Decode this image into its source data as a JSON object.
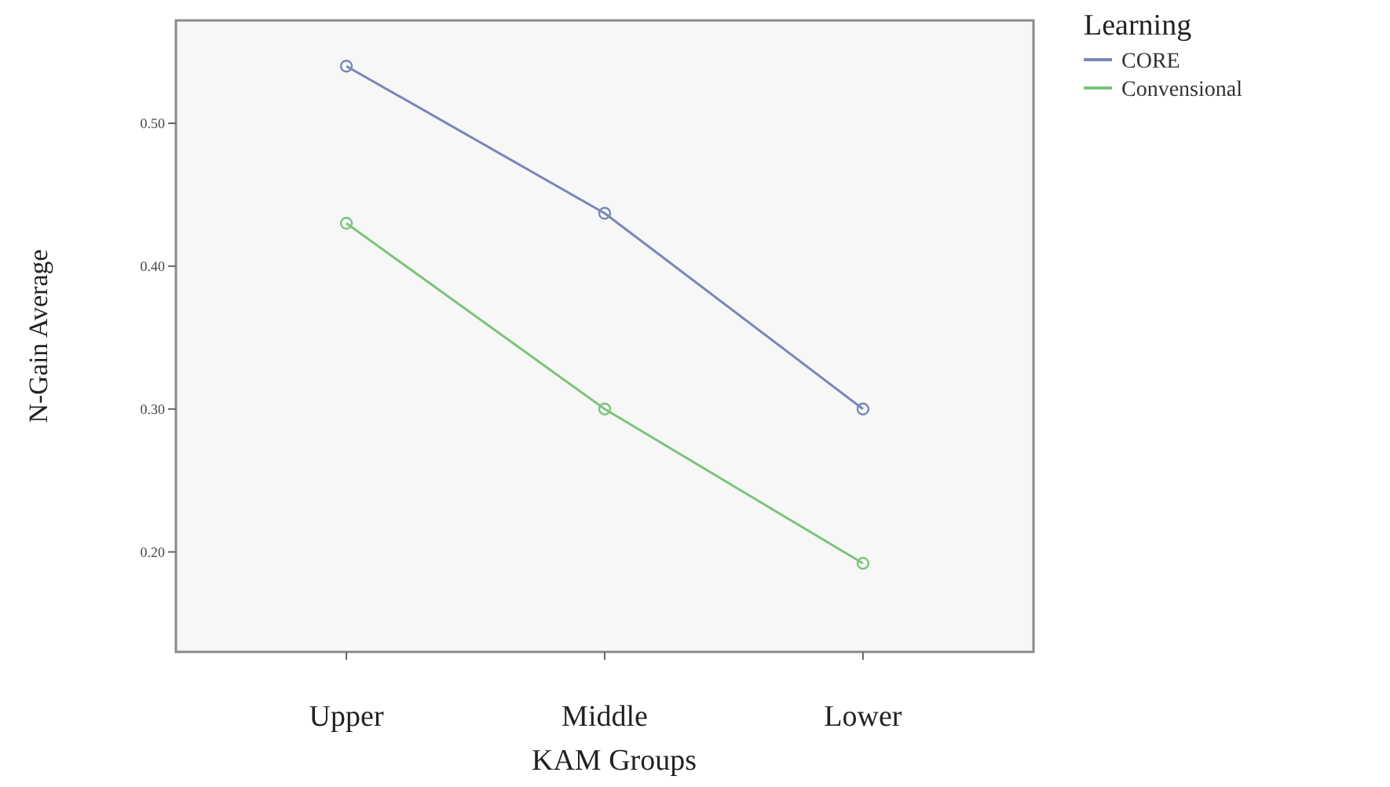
{
  "chart_data": {
    "type": "line",
    "xlabel": "KAM Groups",
    "ylabel": "N-Gain Average",
    "legend_title": "Learning",
    "legend": "top right",
    "marker": "circle",
    "grid": false,
    "categories": [
      "Upper",
      "Middle",
      "Lower"
    ],
    "ylim": [
      0.13,
      0.572
    ],
    "yticks": [
      {
        "value": 0.2,
        "label": "0.20"
      },
      {
        "value": 0.3,
        "label": "0.30"
      },
      {
        "value": 0.4,
        "label": "0.40"
      },
      {
        "value": 0.5,
        "label": "0.50"
      }
    ],
    "series": [
      {
        "name": "CORE",
        "color": "#7b86b8",
        "values": [
          0.54,
          0.437,
          0.3
        ]
      },
      {
        "name": "Convensional",
        "color": "#7cc47a",
        "values": [
          0.43,
          0.3,
          0.192
        ]
      }
    ]
  }
}
